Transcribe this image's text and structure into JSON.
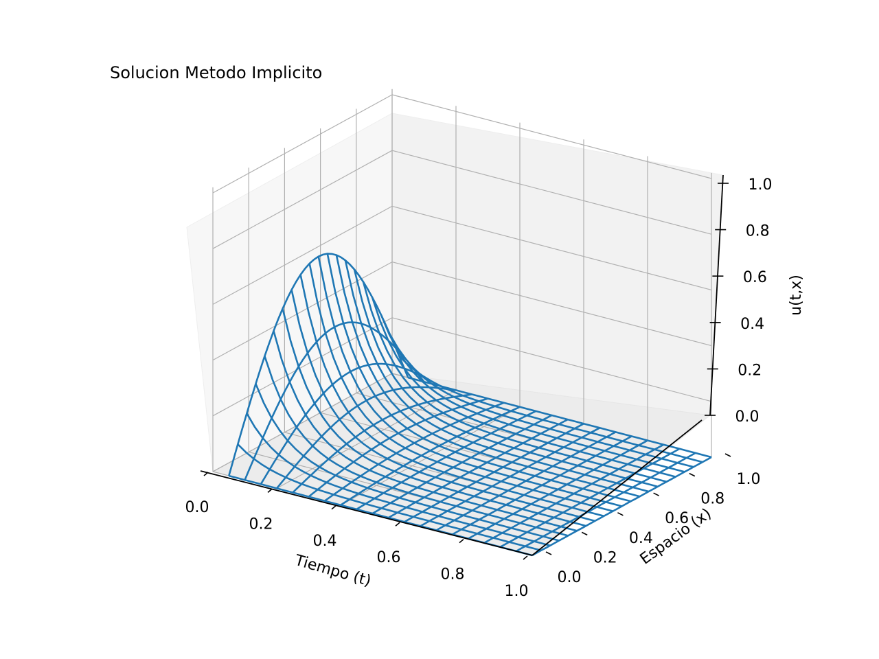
{
  "chart_data": {
    "type": "surface-wireframe-3d",
    "title": "Solucion Metodo Implicito",
    "xlabel": "Tiempo (t)",
    "ylabel": "Espacio (x)",
    "zlabel": "u(t,x)",
    "xlim": [
      0,
      1
    ],
    "ylim": [
      0,
      1
    ],
    "zlim": [
      0,
      1
    ],
    "xticks": [
      "0.0",
      "0.2",
      "0.4",
      "0.6",
      "0.8",
      "1.0"
    ],
    "yticks": [
      "0.0",
      "0.2",
      "0.4",
      "0.6",
      "0.8",
      "1.0"
    ],
    "zticks": [
      "0.0",
      "0.2",
      "0.4",
      "0.6",
      "0.8",
      "1.0"
    ],
    "grid": true,
    "t_values": [
      0.05,
      0.1,
      0.15,
      0.2,
      0.25,
      0.3,
      0.35,
      0.4,
      0.45,
      0.5,
      0.55,
      0.6,
      0.65,
      0.7,
      0.75,
      0.8,
      0.85,
      0.9,
      0.95,
      1.0
    ],
    "x_values": [
      0.0,
      0.05,
      0.1,
      0.15,
      0.2,
      0.25,
      0.3,
      0.35,
      0.4,
      0.45,
      0.5,
      0.55,
      0.6,
      0.65,
      0.7,
      0.75,
      0.8,
      0.85,
      0.9,
      0.95,
      1.0
    ],
    "surface": "u(t,x) = exp(-pi^2 t) sin(pi x), peak ≈ 1.0 at t=0, x=0.5",
    "line_color": "#1f77b4"
  }
}
